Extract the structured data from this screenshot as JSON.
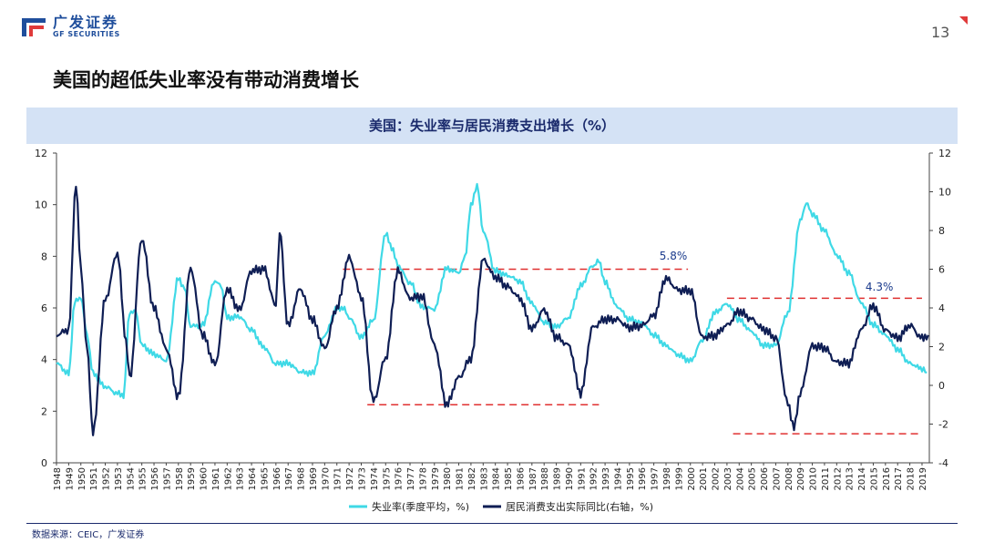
{
  "header": {
    "logo_cn": "广发证券",
    "logo_en": "GF SECURITIES",
    "page_number": "13",
    "slide_title": "美国的超低失业率没有带动消费增长"
  },
  "footer": {
    "source": "数据来源：CEIC，广发证券"
  },
  "colors": {
    "series1": "#3fd9e6",
    "series2": "#0f1e54",
    "dashed": "#e03030",
    "banner": "#d4e2f5"
  },
  "chart_data": {
    "type": "line",
    "title": "美国：失业率与居民消费支出增长（%）",
    "y_left_lim": [
      0,
      12
    ],
    "y_left_ticks": [
      "0",
      "2",
      "4",
      "6",
      "8",
      "10",
      "12"
    ],
    "y_right_lim": [
      -4,
      12
    ],
    "y_right_ticks": [
      "-4",
      "-2",
      "0",
      "2",
      "4",
      "6",
      "8",
      "10",
      "12"
    ],
    "x_ticks": [
      "1948",
      "1949",
      "1950",
      "1951",
      "1952",
      "1953",
      "1954",
      "1955",
      "1956",
      "1957",
      "1958",
      "1959",
      "1960",
      "1961",
      "1962",
      "1963",
      "1964",
      "1965",
      "1966",
      "1967",
      "1968",
      "1969",
      "1970",
      "1971",
      "1972",
      "1973",
      "1974",
      "1975",
      "1976",
      "1977",
      "1978",
      "1979",
      "1980",
      "1981",
      "1982",
      "1983",
      "1984",
      "1985",
      "1986",
      "1987",
      "1988",
      "1989",
      "1990",
      "1991",
      "1992",
      "1993",
      "1994",
      "1995",
      "1996",
      "1997",
      "1998",
      "1999",
      "2000",
      "2001",
      "2002",
      "2003",
      "2004",
      "2005",
      "2006",
      "2007",
      "2008",
      "2009",
      "2010",
      "2011",
      "2012",
      "2013",
      "2014",
      "2015",
      "2016",
      "2017",
      "2018",
      "2019"
    ],
    "series": [
      {
        "name": "失业率(季度平均，%)",
        "axis": "left",
        "points": [
          [
            1948.0,
            3.8
          ],
          [
            1949.0,
            3.4
          ],
          [
            1949.5,
            6.2
          ],
          [
            1950.0,
            6.4
          ],
          [
            1950.5,
            5.0
          ],
          [
            1951.0,
            3.5
          ],
          [
            1952.0,
            3.0
          ],
          [
            1953.0,
            2.7
          ],
          [
            1953.5,
            2.6
          ],
          [
            1954.0,
            5.8
          ],
          [
            1954.5,
            5.8
          ],
          [
            1955.0,
            4.5
          ],
          [
            1956.0,
            4.2
          ],
          [
            1957.0,
            4.0
          ],
          [
            1958.0,
            7.2
          ],
          [
            1958.5,
            6.8
          ],
          [
            1959.0,
            5.3
          ],
          [
            1960.0,
            5.3
          ],
          [
            1961.0,
            7.0
          ],
          [
            1961.5,
            6.8
          ],
          [
            1962.0,
            5.6
          ],
          [
            1963.0,
            5.7
          ],
          [
            1964.0,
            5.2
          ],
          [
            1965.0,
            4.5
          ],
          [
            1966.0,
            3.8
          ],
          [
            1967.0,
            3.8
          ],
          [
            1968.0,
            3.5
          ],
          [
            1969.0,
            3.5
          ],
          [
            1970.0,
            5.0
          ],
          [
            1971.0,
            6.0
          ],
          [
            1971.5,
            6.0
          ],
          [
            1972.0,
            5.6
          ],
          [
            1973.0,
            4.8
          ],
          [
            1974.0,
            5.5
          ],
          [
            1975.0,
            8.9
          ],
          [
            1975.5,
            8.4
          ],
          [
            1976.0,
            7.7
          ],
          [
            1977.0,
            7.0
          ],
          [
            1978.0,
            6.0
          ],
          [
            1979.0,
            5.9
          ],
          [
            1980.0,
            7.5
          ],
          [
            1981.0,
            7.4
          ],
          [
            1981.5,
            8.0
          ],
          [
            1982.0,
            10.0
          ],
          [
            1982.5,
            10.8
          ],
          [
            1983.0,
            9.0
          ],
          [
            1984.0,
            7.4
          ],
          [
            1985.0,
            7.2
          ],
          [
            1986.0,
            7.0
          ],
          [
            1987.0,
            6.2
          ],
          [
            1988.0,
            5.5
          ],
          [
            1989.0,
            5.3
          ],
          [
            1990.0,
            5.6
          ],
          [
            1991.0,
            6.8
          ],
          [
            1992.0,
            7.6
          ],
          [
            1992.5,
            7.8
          ],
          [
            1993.0,
            7.0
          ],
          [
            1994.0,
            6.1
          ],
          [
            1995.0,
            5.6
          ],
          [
            1996.0,
            5.4
          ],
          [
            1997.0,
            4.9
          ],
          [
            1998.0,
            4.5
          ],
          [
            1999.0,
            4.2
          ],
          [
            2000.0,
            4.0
          ],
          [
            2001.0,
            4.8
          ],
          [
            2002.0,
            5.8
          ],
          [
            2003.0,
            6.1
          ],
          [
            2004.0,
            5.5
          ],
          [
            2005.0,
            5.1
          ],
          [
            2006.0,
            4.6
          ],
          [
            2007.0,
            4.6
          ],
          [
            2008.0,
            5.8
          ],
          [
            2009.0,
            9.3
          ],
          [
            2009.5,
            10.0
          ],
          [
            2010.0,
            9.6
          ],
          [
            2011.0,
            9.0
          ],
          [
            2012.0,
            8.1
          ],
          [
            2013.0,
            7.4
          ],
          [
            2014.0,
            6.2
          ],
          [
            2015.0,
            5.3
          ],
          [
            2016.0,
            4.9
          ],
          [
            2017.0,
            4.4
          ],
          [
            2018.0,
            3.9
          ],
          [
            2019.0,
            3.7
          ],
          [
            2019.4,
            3.5
          ]
        ]
      },
      {
        "name": "居民消费支出实际同比(右轴，%)",
        "axis": "right",
        "points": [
          [
            1948.0,
            2.5
          ],
          [
            1949.0,
            2.8
          ],
          [
            1949.6,
            10.3
          ],
          [
            1950.0,
            6.0
          ],
          [
            1950.5,
            2.0
          ],
          [
            1951.0,
            -2.3
          ],
          [
            1952.0,
            4.5
          ],
          [
            1953.0,
            6.8
          ],
          [
            1953.7,
            2.5
          ],
          [
            1954.0,
            0.2
          ],
          [
            1955.0,
            7.5
          ],
          [
            1956.0,
            4.0
          ],
          [
            1957.0,
            2.0
          ],
          [
            1958.0,
            -0.5
          ],
          [
            1959.0,
            6.0
          ],
          [
            1960.0,
            2.5
          ],
          [
            1961.0,
            1.0
          ],
          [
            1962.0,
            5.0
          ],
          [
            1963.0,
            4.0
          ],
          [
            1964.0,
            6.0
          ],
          [
            1965.0,
            6.0
          ],
          [
            1966.0,
            4.0
          ],
          [
            1966.3,
            8.0
          ],
          [
            1967.0,
            3.0
          ],
          [
            1968.0,
            5.0
          ],
          [
            1969.0,
            3.5
          ],
          [
            1970.0,
            2.0
          ],
          [
            1971.0,
            4.0
          ],
          [
            1972.0,
            6.5
          ],
          [
            1973.0,
            4.5
          ],
          [
            1974.0,
            -0.8
          ],
          [
            1975.0,
            1.5
          ],
          [
            1976.0,
            6.0
          ],
          [
            1977.0,
            4.5
          ],
          [
            1978.0,
            4.5
          ],
          [
            1979.0,
            2.0
          ],
          [
            1980.0,
            -1.0
          ],
          [
            1981.0,
            0.5
          ],
          [
            1982.0,
            1.5
          ],
          [
            1983.0,
            6.5
          ],
          [
            1984.0,
            5.5
          ],
          [
            1985.0,
            5.0
          ],
          [
            1986.0,
            4.5
          ],
          [
            1987.0,
            3.0
          ],
          [
            1988.0,
            4.0
          ],
          [
            1989.0,
            2.5
          ],
          [
            1990.0,
            2.0
          ],
          [
            1991.0,
            -0.5
          ],
          [
            1992.0,
            3.0
          ],
          [
            1993.0,
            3.5
          ],
          [
            1994.0,
            3.5
          ],
          [
            1995.0,
            3.0
          ],
          [
            1996.0,
            3.0
          ],
          [
            1997.0,
            3.5
          ],
          [
            1998.0,
            5.5
          ],
          [
            1999.0,
            5.0
          ],
          [
            2000.0,
            5.0
          ],
          [
            2001.0,
            2.5
          ],
          [
            2002.0,
            2.5
          ],
          [
            2003.0,
            3.0
          ],
          [
            2004.0,
            3.8
          ],
          [
            2005.0,
            3.5
          ],
          [
            2006.0,
            3.0
          ],
          [
            2007.0,
            2.5
          ],
          [
            2008.0,
            -1.0
          ],
          [
            2008.5,
            -2.3
          ],
          [
            2009.0,
            -0.5
          ],
          [
            2010.0,
            2.0
          ],
          [
            2011.0,
            2.0
          ],
          [
            2012.0,
            1.3
          ],
          [
            2013.0,
            1.2
          ],
          [
            2014.0,
            2.8
          ],
          [
            2015.0,
            4.0
          ],
          [
            2016.0,
            2.8
          ],
          [
            2017.0,
            2.5
          ],
          [
            2018.0,
            3.2
          ],
          [
            2019.0,
            2.5
          ],
          [
            2019.5,
            2.6
          ]
        ]
      }
    ],
    "reference_lines": [
      {
        "axis": "right",
        "y": 6.0,
        "x0": 1971.5,
        "x1": 1999.8
      },
      {
        "axis": "right",
        "y": -1.0,
        "x0": 1973.5,
        "x1": 1992.5
      },
      {
        "axis": "right",
        "y": 4.5,
        "x0": 2003.0,
        "x1": 2019.0
      },
      {
        "axis": "right",
        "y": -2.5,
        "x0": 2003.5,
        "x1": 2019.0
      }
    ],
    "annotations": [
      {
        "text": "5.8%",
        "x": 1998.6,
        "axis": "right",
        "y": 6.5
      },
      {
        "text": "4.3%",
        "x": 2015.5,
        "axis": "right",
        "y": 4.9
      }
    ]
  }
}
